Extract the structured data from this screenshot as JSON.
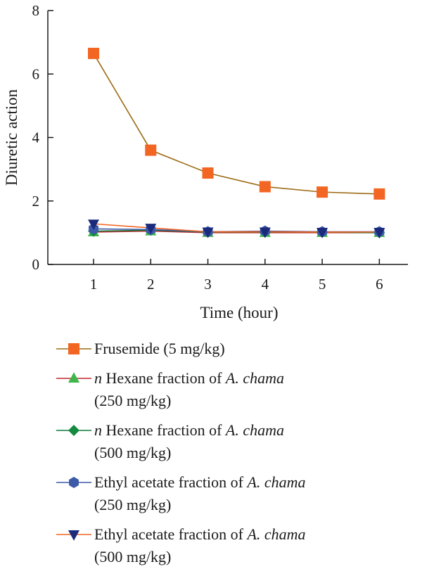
{
  "chart_data": {
    "type": "line",
    "xlabel": "Time (hour)",
    "ylabel": "Diuretic action",
    "x": [
      1,
      2,
      3,
      4,
      5,
      6
    ],
    "xlim": [
      0.2,
      6.5
    ],
    "ylim": [
      0,
      8
    ],
    "x_ticks": [
      "1",
      "2",
      "3",
      "4",
      "5",
      "6"
    ],
    "y_ticks": [
      "0",
      "2",
      "4",
      "6",
      "8"
    ],
    "grid": false,
    "legend_position": "bottom",
    "series": [
      {
        "name": "Frusemide (5 mg/kg)",
        "legend_parts": [
          {
            "text": "Frusemide (5 mg/kg)",
            "italic": false
          }
        ],
        "values": [
          6.65,
          3.6,
          2.88,
          2.45,
          2.28,
          2.22
        ],
        "line_color": "#9c6b14",
        "marker_color": "#f26522",
        "marker": "square"
      },
      {
        "name": "n Hexane fraction of A. chama (250 mg/kg)",
        "legend_parts": [
          {
            "text": "n",
            "italic": true
          },
          {
            "text": " Hexane fraction of ",
            "italic": false
          },
          {
            "text": "A. chama",
            "italic": true
          },
          {
            "text": "(250 mg/kg)",
            "italic": false,
            "break_before": true
          }
        ],
        "values": [
          1.02,
          1.05,
          1.0,
          1.0,
          1.0,
          1.0
        ],
        "line_color": "#c0272d",
        "marker_color": "#3fb54a",
        "marker": "triangle-up"
      },
      {
        "name": "n Hexane fraction of A. chama (500 mg/kg)",
        "legend_parts": [
          {
            "text": "n",
            "italic": true
          },
          {
            "text": " Hexane fraction of ",
            "italic": false
          },
          {
            "text": "A. chama",
            "italic": true
          },
          {
            "text": "(500 mg/kg)",
            "italic": false,
            "break_before": true
          }
        ],
        "values": [
          1.05,
          1.08,
          1.02,
          1.02,
          1.02,
          1.0
        ],
        "line_color": "#0f7a3a",
        "marker_color": "#138a40",
        "marker": "diamond"
      },
      {
        "name": "Ethyl acetate fraction of A. chama (250 mg/kg)",
        "legend_parts": [
          {
            "text": "Ethyl acetate fraction of ",
            "italic": false
          },
          {
            "text": "A. chama",
            "italic": true
          },
          {
            "text": "(250 mg/kg)",
            "italic": false,
            "break_before": true
          }
        ],
        "values": [
          1.12,
          1.1,
          1.03,
          1.05,
          1.03,
          1.03
        ],
        "line_color": "#3c5aa8",
        "marker_color": "#3c5aa8",
        "marker": "hexagon"
      },
      {
        "name": "Ethyl acetate fraction of A. chama (500 mg/kg)",
        "legend_parts": [
          {
            "text": "Ethyl acetate fraction of ",
            "italic": false
          },
          {
            "text": "A. chama",
            "italic": true
          },
          {
            "text": "(500 mg/kg)",
            "italic": false,
            "break_before": true
          }
        ],
        "values": [
          1.28,
          1.15,
          1.03,
          1.03,
          1.02,
          1.02
        ],
        "line_color": "#f26522",
        "marker_color": "#1b2a7a",
        "marker": "triangle-down"
      }
    ]
  }
}
